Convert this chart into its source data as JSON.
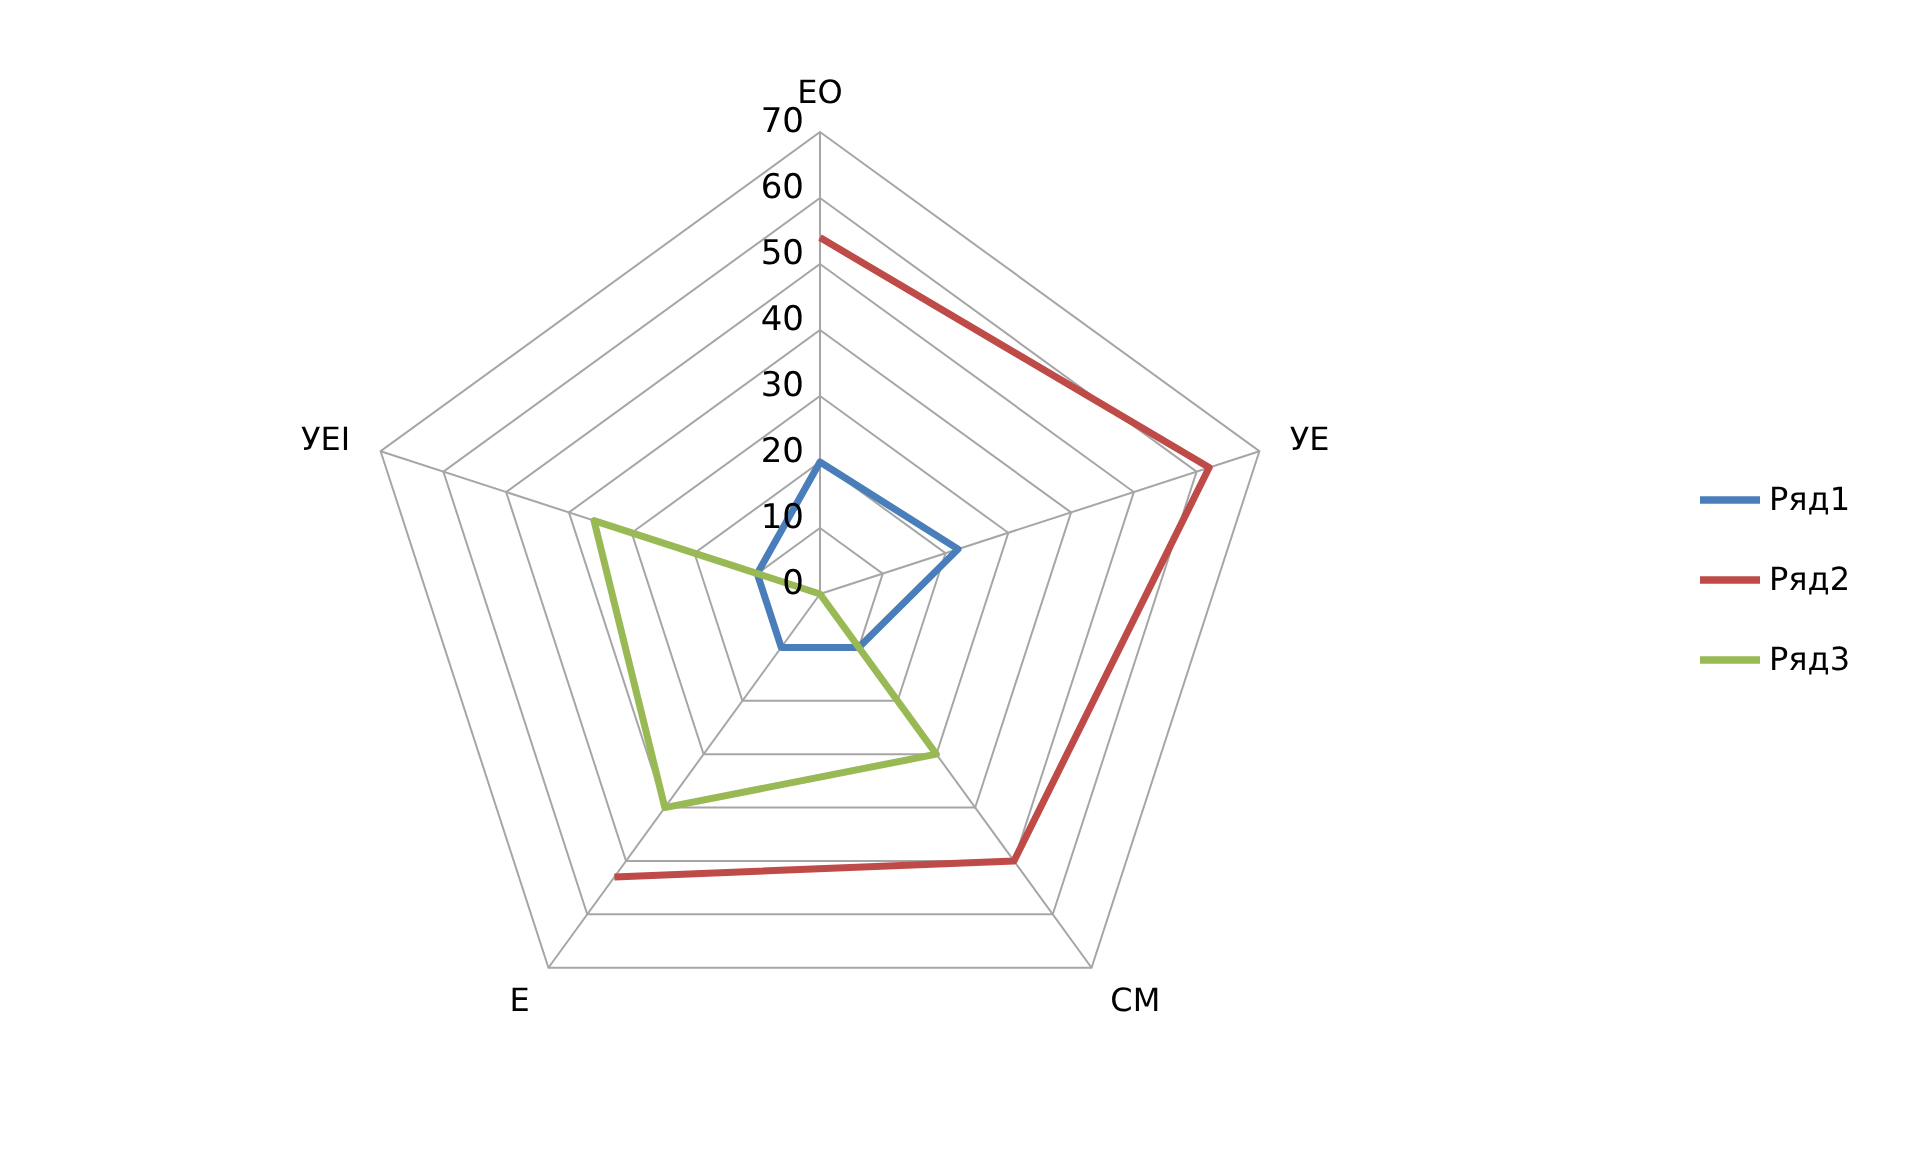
{
  "chart_data": {
    "type": "radar",
    "categories": [
      "EO",
      "УЕ",
      "CM",
      "E",
      "УЕI"
    ],
    "series": [
      {
        "name": "Ряд1",
        "color": "#4a7ebb",
        "values": [
          20,
          22,
          10,
          10,
          10
        ]
      },
      {
        "name": "Ряд2",
        "color": "#be4b48",
        "values": [
          54,
          62,
          50,
          53,
          null
        ]
      },
      {
        "name": "Ряд3",
        "color": "#98b954",
        "values": [
          0,
          0,
          30,
          40,
          36
        ]
      }
    ],
    "ylim": [
      0,
      70
    ],
    "yticks": [
      0,
      10,
      20,
      30,
      40,
      50,
      60,
      70
    ],
    "grid": true,
    "legend": "right",
    "marker": "none",
    "line_style": "solid"
  }
}
